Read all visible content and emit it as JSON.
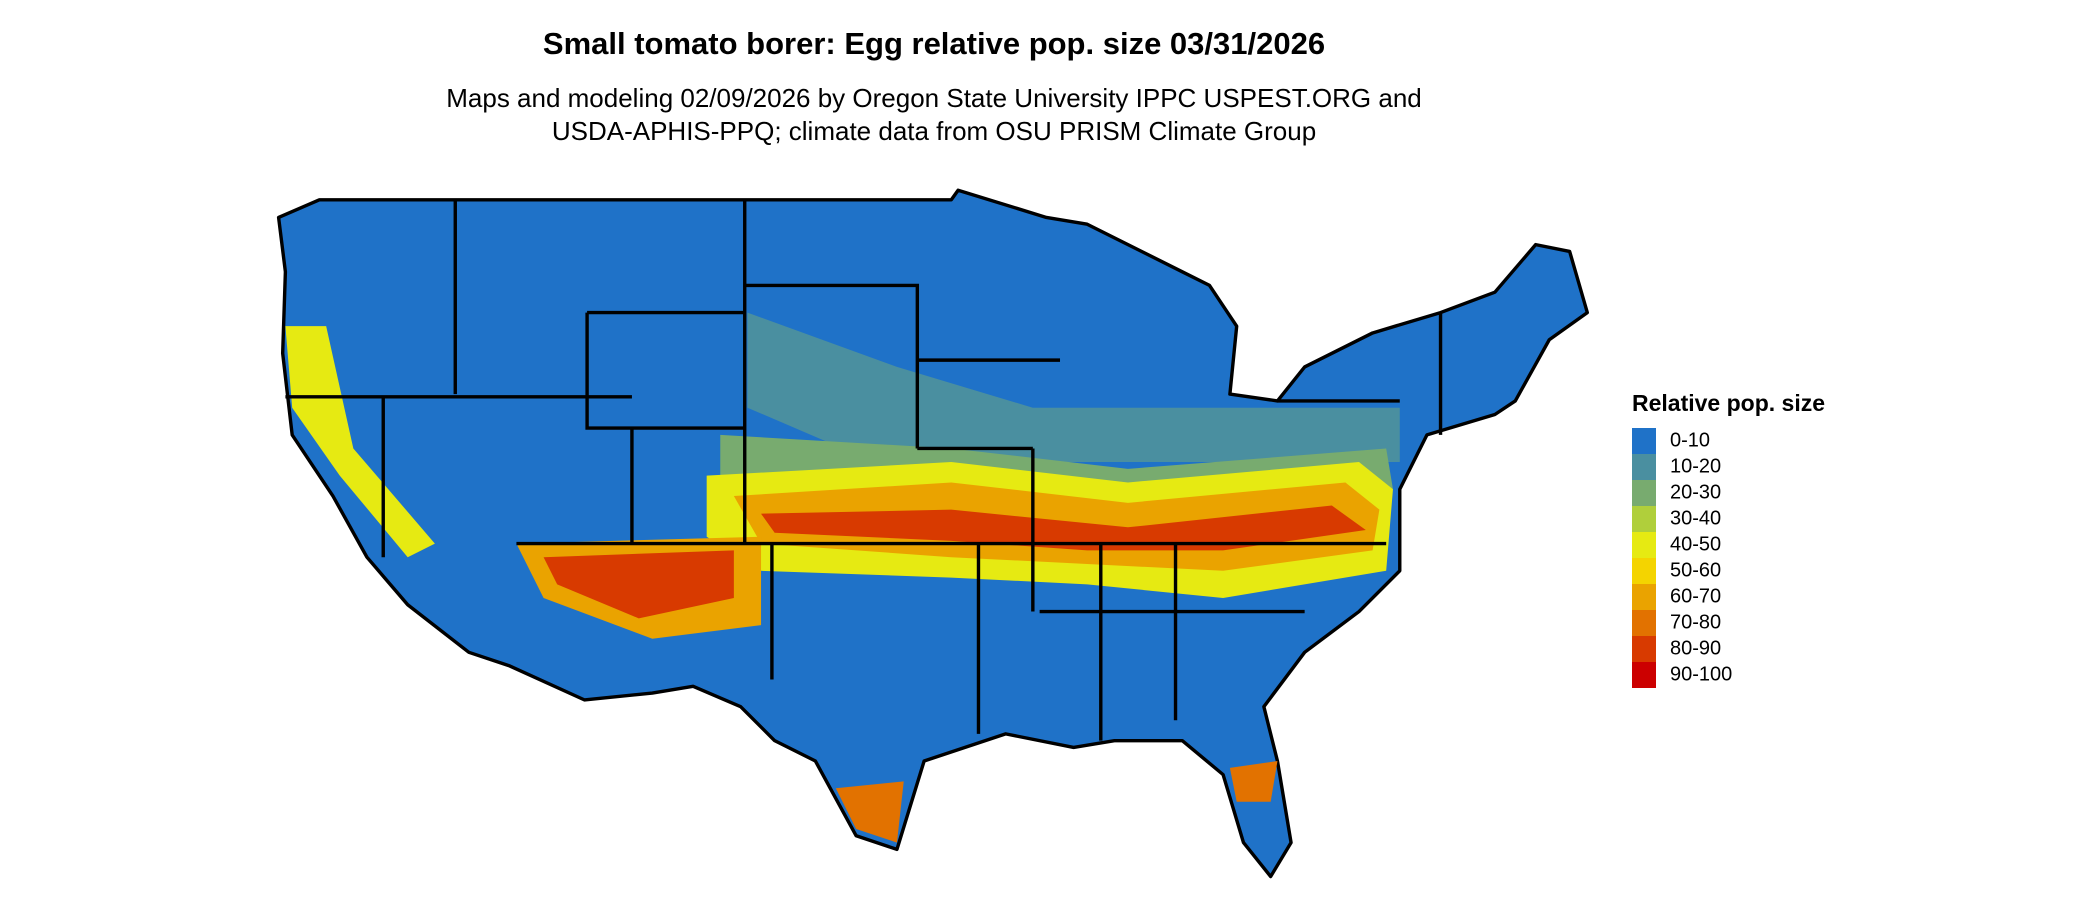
{
  "title": "Small tomato borer: Egg relative pop. size 03/31/2026",
  "subtitle": [
    "Maps and modeling 02/09/2026 by Oregon State University IPPC USPEST.ORG and",
    "USDA-APHIS-PPQ; climate data from OSU PRISM Climate Group"
  ],
  "legend": {
    "title": "Relative pop. size",
    "items": [
      {
        "label": "0-10",
        "color": "#1f72c8"
      },
      {
        "label": "10-20",
        "color": "#4a8fa0"
      },
      {
        "label": "20-30",
        "color": "#78ab6f"
      },
      {
        "label": "30-40",
        "color": "#b0cf3b"
      },
      {
        "label": "40-50",
        "color": "#e6ea12"
      },
      {
        "label": "50-60",
        "color": "#f4d400"
      },
      {
        "label": "60-70",
        "color": "#eaa300"
      },
      {
        "label": "70-80",
        "color": "#e27200"
      },
      {
        "label": "80-90",
        "color": "#d83a00"
      },
      {
        "label": "90-100",
        "color": "#cc0000"
      }
    ]
  }
}
